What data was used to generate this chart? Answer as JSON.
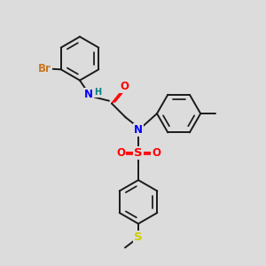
{
  "bg_color": "#dcdcdc",
  "bond_color": "#1a1a1a",
  "bond_width": 1.4,
  "dbo": 0.055,
  "atom_colors": {
    "Br": "#cc7722",
    "N": "#0000ff",
    "H": "#008080",
    "O": "#ff0000",
    "S1": "#ff0000",
    "S2": "#cccc00",
    "C": "#1a1a1a"
  },
  "fs": 8.5
}
